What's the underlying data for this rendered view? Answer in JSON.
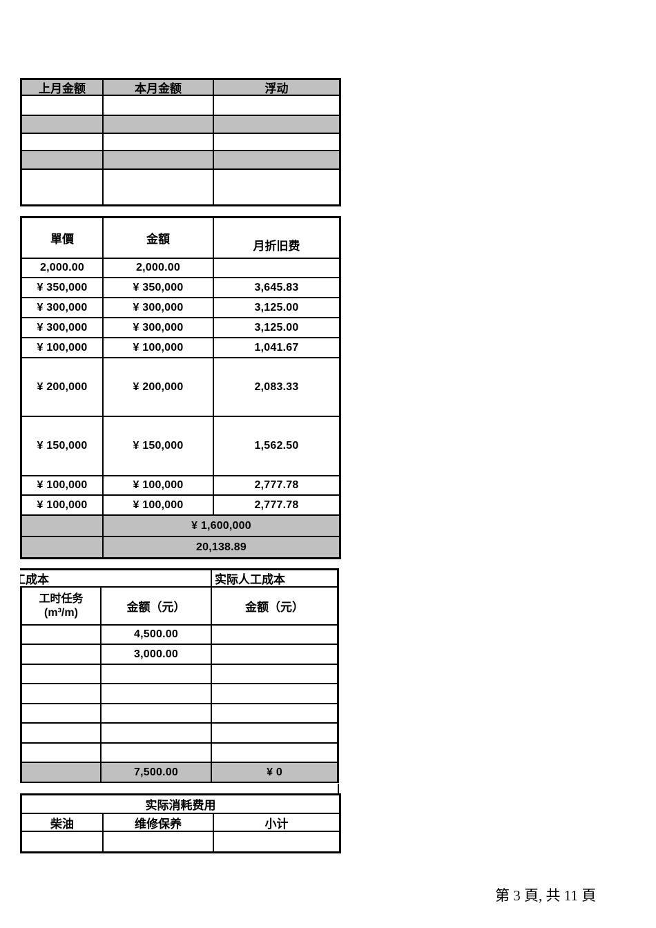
{
  "colors": {
    "shade_gray": "#c0c0c0",
    "border_black": "#000000"
  },
  "monthly_compare_table": {
    "headers": [
      "上月金额",
      "本月金额",
      "浮动"
    ]
  },
  "depreciation_table": {
    "headers": {
      "col1": "單價",
      "col2": "金額",
      "col3": "月折旧费"
    },
    "rows": [
      [
        "2,000.00",
        "2,000.00",
        ""
      ],
      [
        "¥ 350,000",
        "¥ 350,000",
        "3,645.83"
      ],
      [
        "¥ 300,000",
        "¥ 300,000",
        "3,125.00"
      ],
      [
        "¥ 300,000",
        "¥ 300,000",
        "3,125.00"
      ],
      [
        "¥ 100,000",
        "¥ 100,000",
        "1,041.67"
      ],
      [
        "¥ 200,000",
        "¥ 200,000",
        "2,083.33"
      ],
      [
        "¥ 150,000",
        "¥ 150,000",
        "1,562.50"
      ],
      [
        "¥ 100,000",
        "¥ 100,000",
        "2,777.78"
      ],
      [
        "¥ 100,000",
        "¥ 100,000",
        "2,777.78"
      ]
    ],
    "total_amount": "¥ 1,600,000",
    "total_depreciation": "20,138.89"
  },
  "labor_table": {
    "left_section_label": "工成本",
    "right_section_label": "实际人工成本",
    "headers": {
      "col1_line1": "工时任务",
      "col1_line2": "(m³/m)",
      "col2": "金额（元）",
      "col3": "金额（元）"
    },
    "rows": [
      [
        "",
        "4,500.00",
        ""
      ],
      [
        "",
        "3,000.00",
        ""
      ],
      [
        "",
        "",
        ""
      ],
      [
        "",
        "",
        ""
      ],
      [
        "",
        "",
        ""
      ],
      [
        "",
        "",
        ""
      ],
      [
        "",
        "",
        ""
      ]
    ],
    "total": {
      "amount": "7,500.00",
      "actual": "¥ 0"
    }
  },
  "consumption_table": {
    "title": "实际消耗费用",
    "headers": [
      "柴油",
      "维修保养",
      "小计"
    ]
  },
  "footer": {
    "page_text": "第 3 頁, 共 11 頁"
  }
}
